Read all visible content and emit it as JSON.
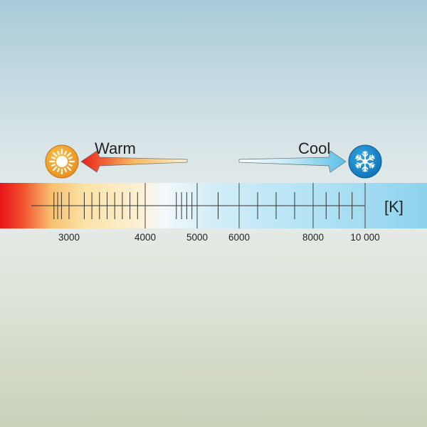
{
  "warm": {
    "label": "Warm",
    "icon": "sun-icon",
    "color": "#f0a020"
  },
  "cool": {
    "label": "Cool",
    "icon": "snowflake-icon",
    "color": "#1a8ccf"
  },
  "unit_label": "[K]",
  "scale": {
    "min_kelvin": 2000,
    "max_kelvin": 10000,
    "major_ticks": [
      4000,
      5000,
      6000,
      8000,
      10000
    ],
    "minor_ticks": [
      2600,
      2700,
      2800,
      3000,
      3200,
      3300,
      3400,
      3500,
      3600,
      3700,
      3800,
      3900,
      4600,
      4700,
      4800,
      4900,
      5500,
      6500,
      7000,
      7500,
      8500,
      9000,
      9500
    ],
    "tick_labels": [
      {
        "value": 3000,
        "text": "3000"
      },
      {
        "value": 4000,
        "text": "4000"
      },
      {
        "value": 5000,
        "text": "5000"
      },
      {
        "value": 6000,
        "text": "6000"
      },
      {
        "value": 8000,
        "text": "8000"
      },
      {
        "value": 10000,
        "text": "10 000"
      }
    ]
  }
}
